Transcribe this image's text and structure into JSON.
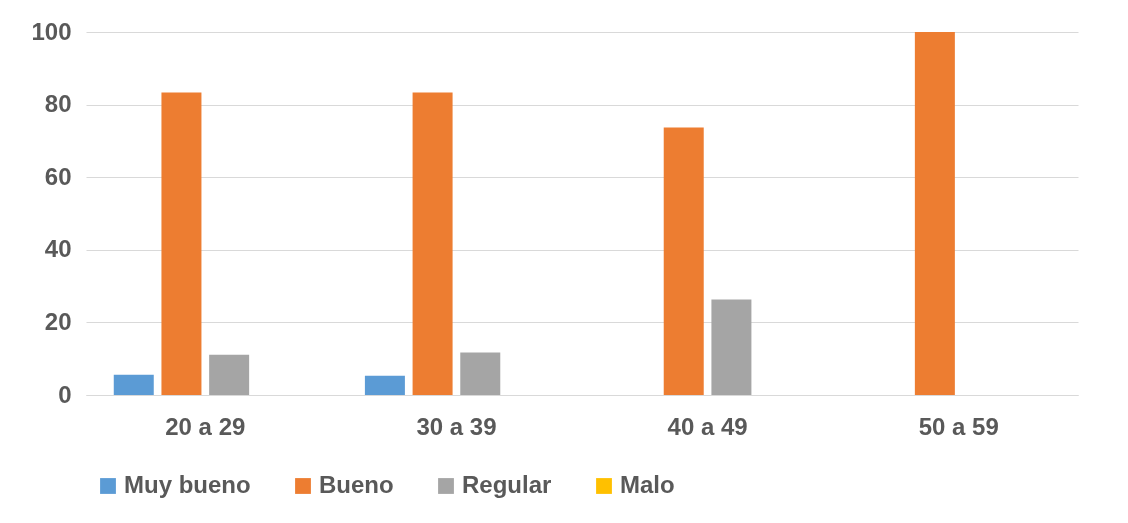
{
  "chart_data": {
    "type": "bar",
    "categories": [
      "20 a 29",
      "30 a 39",
      "40 a 49",
      "50 a 59"
    ],
    "series": [
      {
        "name": "Muy bueno",
        "color": "#5b9bd5",
        "values": [
          5.6,
          5.3,
          0,
          0
        ]
      },
      {
        "name": "Bueno",
        "color": "#ed7d31",
        "values": [
          83.3,
          83.3,
          73.7,
          100
        ]
      },
      {
        "name": "Regular",
        "color": "#a5a5a5",
        "values": [
          11.1,
          11.7,
          26.3,
          0
        ]
      },
      {
        "name": "Malo",
        "color": "#ffc000",
        "values": [
          0,
          0,
          0,
          0
        ]
      }
    ],
    "ylim": [
      0,
      100
    ],
    "yticks": [
      0,
      20,
      40,
      60,
      80,
      100
    ],
    "grid": "y",
    "legend": "bottom"
  }
}
